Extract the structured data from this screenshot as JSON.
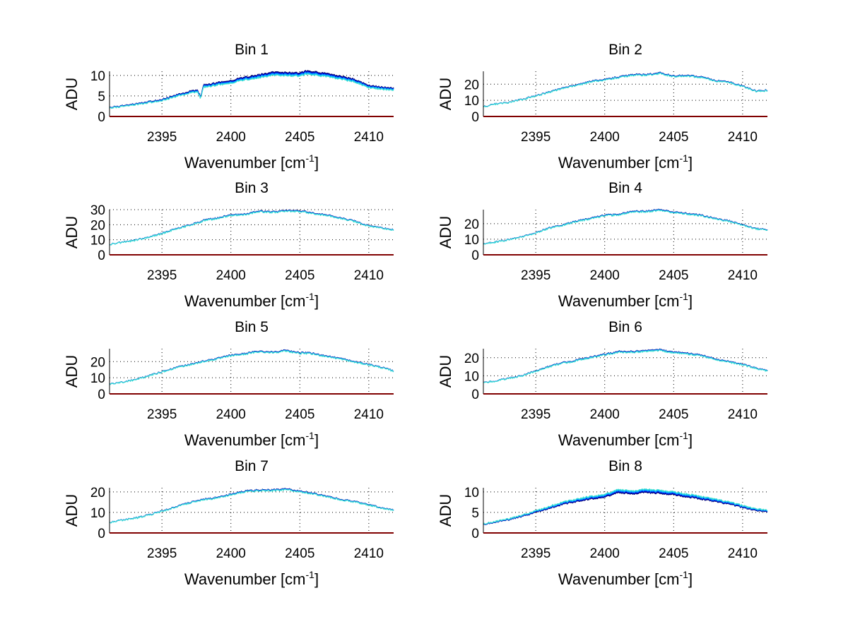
{
  "chart_data": {
    "type": "line",
    "layout": "4x2 subplot grid",
    "xlabel": "Wavenumber [cm",
    "xlabel_superscript": "-1",
    "xlabel_suffix": "]",
    "ylabel": "ADU",
    "xlim": [
      2391.2,
      2411.8
    ],
    "xticks": [
      2395,
      2400,
      2405,
      2410
    ],
    "grid": true,
    "zero_line_color": "#800000",
    "series_colors": [
      "#000060",
      "#00008b",
      "#0000cd",
      "#0040ff",
      "#0080ff",
      "#00b0ff",
      "#20d0f0",
      "#40e0d0"
    ],
    "x": [
      2391.2,
      2392.0,
      2393.0,
      2394.0,
      2395.0,
      2396.0,
      2397.0,
      2397.6,
      2397.8,
      2398.0,
      2399.0,
      2400.0,
      2401.0,
      2402.0,
      2403.0,
      2404.0,
      2405.0,
      2405.5,
      2406.0,
      2407.0,
      2408.0,
      2409.0,
      2410.0,
      2411.0,
      2411.8
    ],
    "subplots": [
      {
        "title": "Bin 1",
        "ylim": [
          0,
          11
        ],
        "yticks": [
          0,
          5,
          10
        ],
        "n_series": 8,
        "spread": 0.9,
        "values": [
          2.0,
          2.4,
          2.8,
          3.3,
          3.9,
          4.8,
          5.7,
          6.0,
          4.3,
          7.1,
          7.6,
          8.1,
          8.9,
          9.4,
          10.0,
          9.9,
          9.8,
          10.3,
          10.1,
          9.6,
          9.1,
          8.3,
          7.0,
          6.6,
          6.4
        ]
      },
      {
        "title": "Bin 2",
        "ylim": [
          0,
          28
        ],
        "yticks": [
          0,
          10,
          20
        ],
        "n_series": 8,
        "spread": 0.6,
        "values": [
          6.0,
          7.5,
          8.5,
          10.5,
          12.5,
          15.0,
          17.5,
          18.5,
          18.7,
          19.0,
          21.5,
          22.5,
          24.0,
          25.5,
          25.5,
          26.5,
          24.5,
          25.0,
          25.0,
          24.0,
          22.0,
          21.0,
          18.5,
          15.5,
          16.0
        ]
      },
      {
        "title": "Bin 3",
        "ylim": [
          0,
          30
        ],
        "yticks": [
          0,
          10,
          20,
          30
        ],
        "n_series": 8,
        "spread": 0.6,
        "values": [
          7.0,
          8.0,
          9.5,
          11.5,
          14.0,
          17.0,
          19.5,
          21.0,
          21.5,
          22.5,
          24.0,
          26.0,
          26.5,
          28.5,
          28.0,
          29.0,
          28.5,
          28.0,
          27.0,
          26.0,
          24.0,
          22.0,
          19.0,
          17.5,
          16.5
        ]
      },
      {
        "title": "Bin 4",
        "ylim": [
          0,
          29
        ],
        "yticks": [
          0,
          10,
          20
        ],
        "n_series": 8,
        "spread": 0.6,
        "values": [
          7.0,
          8.0,
          9.5,
          11.5,
          14.0,
          17.0,
          19.0,
          20.5,
          21.0,
          21.5,
          23.0,
          25.0,
          25.5,
          27.5,
          27.5,
          28.5,
          27.0,
          26.5,
          26.0,
          25.0,
          23.0,
          21.5,
          19.0,
          16.5,
          16.0
        ]
      },
      {
        "title": "Bin 5",
        "ylim": [
          0,
          28
        ],
        "yticks": [
          0,
          10,
          20
        ],
        "n_series": 8,
        "spread": 0.6,
        "values": [
          6.0,
          7.0,
          8.5,
          11.0,
          13.5,
          16.0,
          18.0,
          19.0,
          19.5,
          20.0,
          21.5,
          23.5,
          24.5,
          26.0,
          25.5,
          26.5,
          25.0,
          25.0,
          24.5,
          23.0,
          21.5,
          19.5,
          18.0,
          16.0,
          14.0
        ]
      },
      {
        "title": "Bin 6",
        "ylim": [
          0,
          25
        ],
        "yticks": [
          0,
          10,
          20
        ],
        "n_series": 8,
        "spread": 0.6,
        "values": [
          6.0,
          7.0,
          8.5,
          10.0,
          12.5,
          15.0,
          17.0,
          17.5,
          18.0,
          18.5,
          20.0,
          21.5,
          23.0,
          23.0,
          23.5,
          24.0,
          22.5,
          22.5,
          22.0,
          21.0,
          19.0,
          17.5,
          16.0,
          14.0,
          12.5
        ]
      },
      {
        "title": "Bin 7",
        "ylim": [
          0,
          22
        ],
        "yticks": [
          0,
          10,
          20
        ],
        "n_series": 8,
        "spread": 0.5,
        "values": [
          5.0,
          6.0,
          7.0,
          8.5,
          10.5,
          12.5,
          14.5,
          15.5,
          15.8,
          16.0,
          17.0,
          18.5,
          20.0,
          20.5,
          20.5,
          21.0,
          20.0,
          19.5,
          19.0,
          17.5,
          16.0,
          15.0,
          13.5,
          12.0,
          11.0
        ]
      },
      {
        "title": "Bin 8",
        "ylim": [
          0,
          11
        ],
        "yticks": [
          0,
          5,
          10
        ],
        "n_series": 8,
        "spread": 0.9,
        "values": [
          2.0,
          2.6,
          3.2,
          4.0,
          5.0,
          6.0,
          7.0,
          7.4,
          7.5,
          7.7,
          8.3,
          8.7,
          9.8,
          9.5,
          9.8,
          9.6,
          9.3,
          9.0,
          8.8,
          8.2,
          7.6,
          7.0,
          6.2,
          5.4,
          5.2
        ]
      }
    ]
  }
}
